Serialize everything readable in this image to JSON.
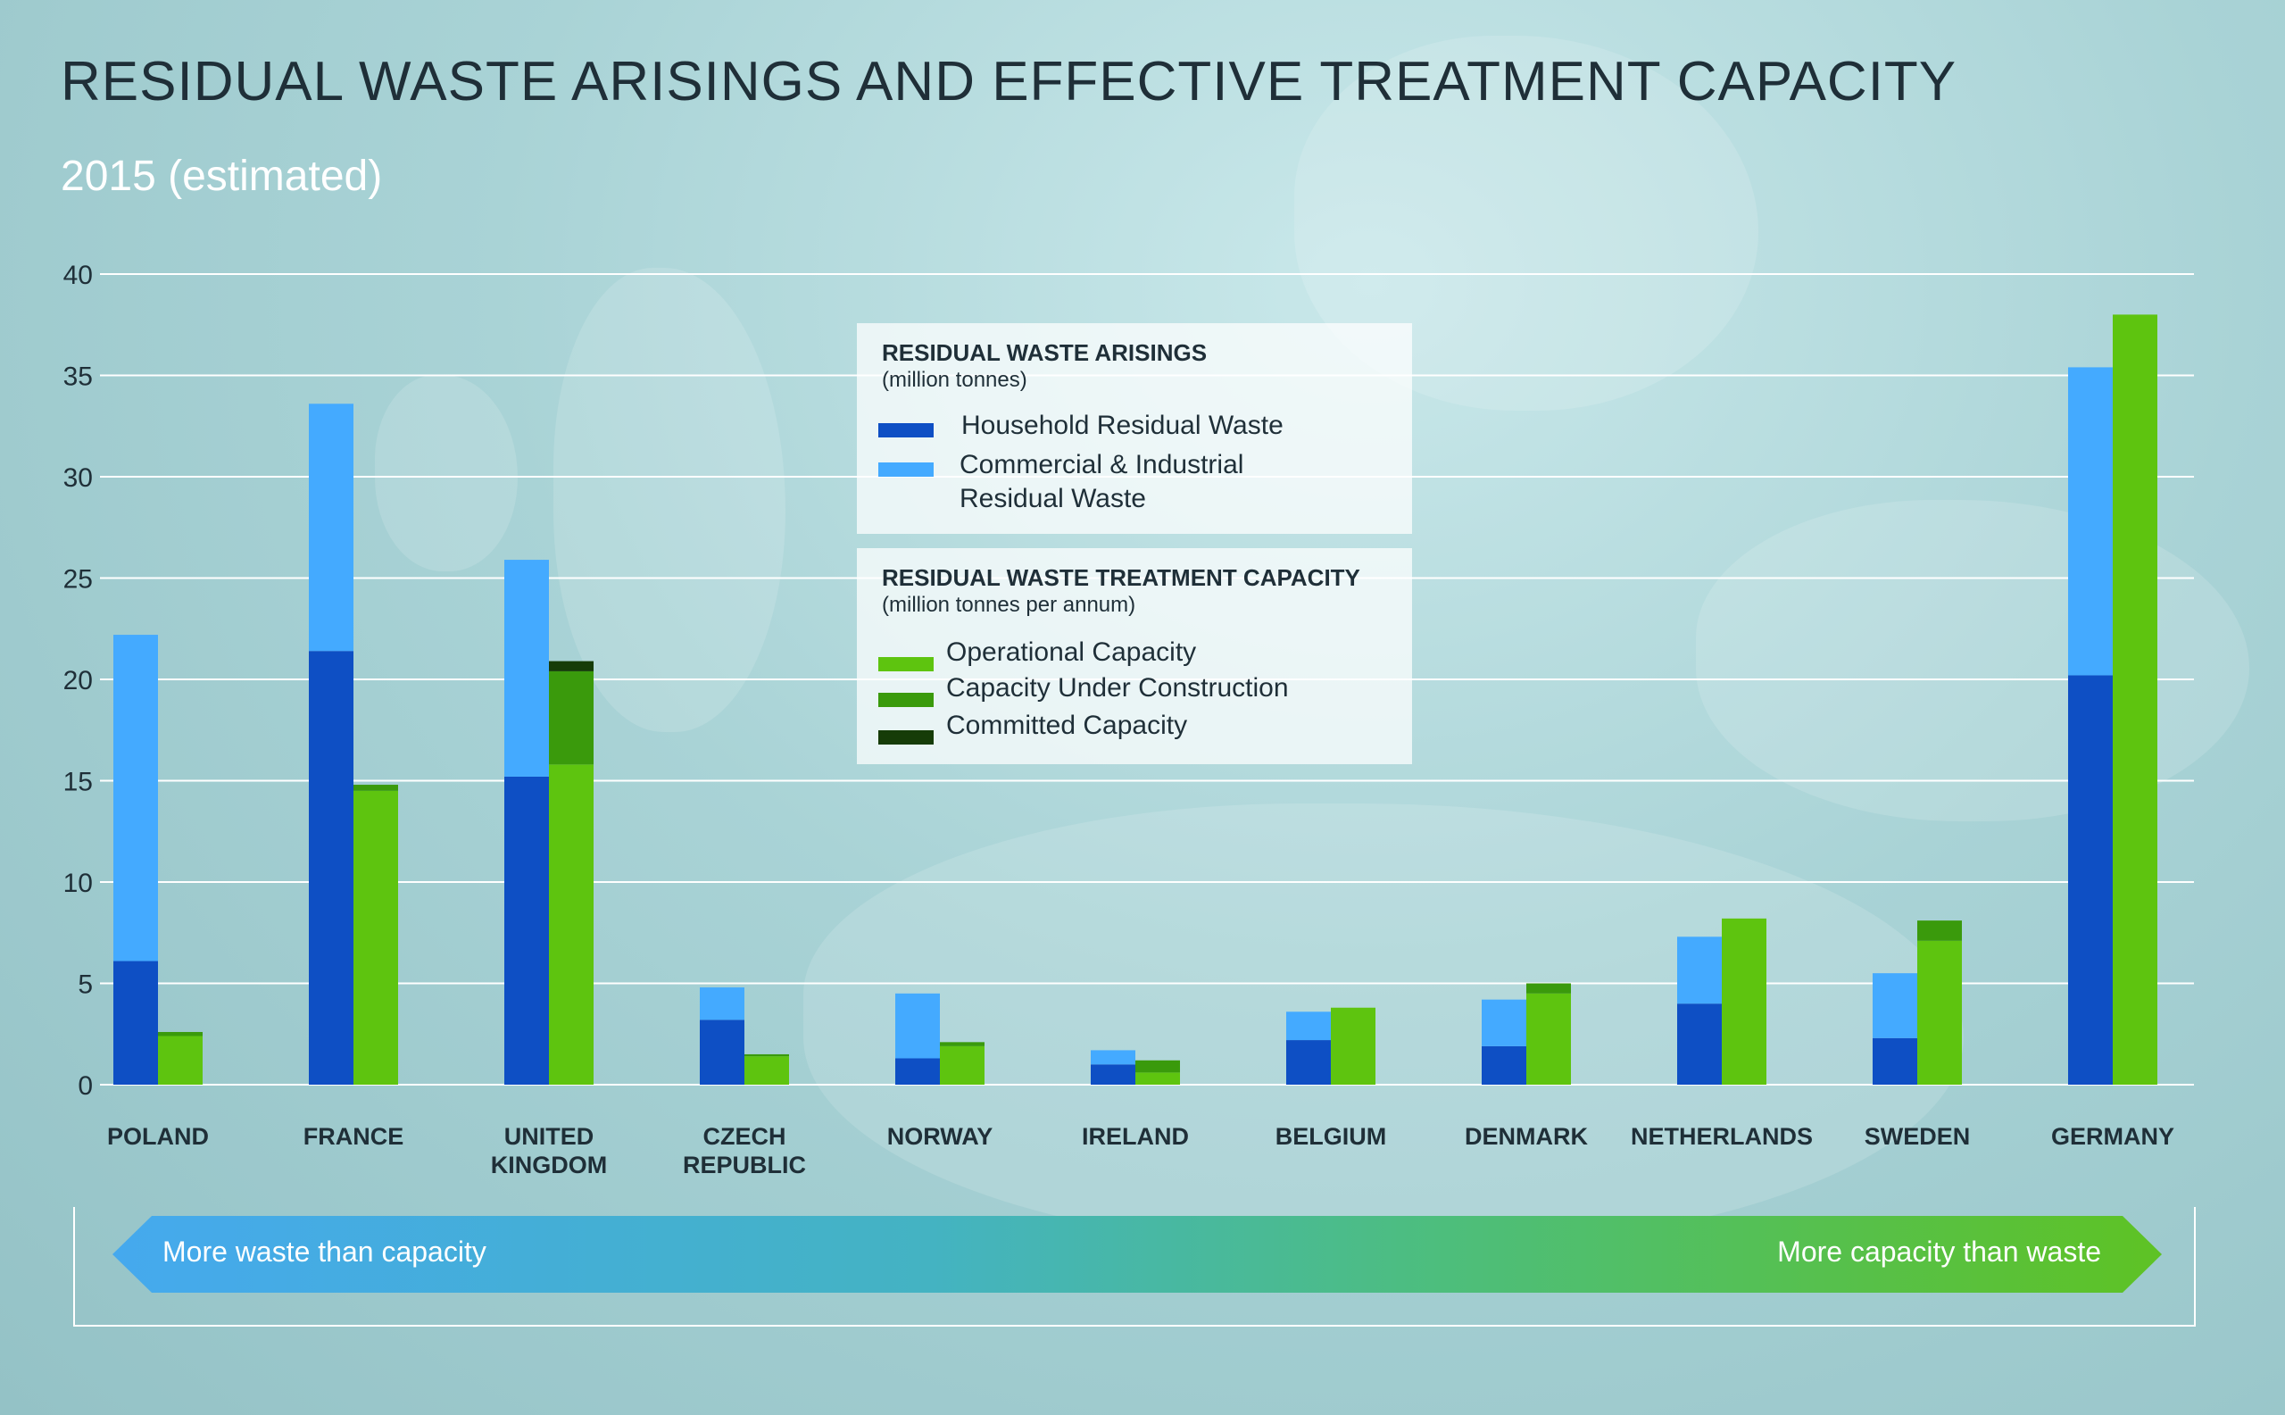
{
  "chart_data": {
    "type": "bar",
    "title": "RESIDUAL WASTE ARISINGS AND EFFECTIVE TREATMENT CAPACITY",
    "subtitle": "2015 (estimated)",
    "ylim": [
      0,
      40
    ],
    "yticks": [
      0,
      5,
      10,
      15,
      20,
      25,
      30,
      35,
      40
    ],
    "grid": true,
    "categories": [
      [
        "POLAND"
      ],
      [
        "FRANCE"
      ],
      [
        "UNITED",
        "KINGDOM"
      ],
      [
        "CZECH",
        "REPUBLIC"
      ],
      [
        "NORWAY"
      ],
      [
        "IRELAND"
      ],
      [
        "BELGIUM"
      ],
      [
        "DENMARK"
      ],
      [
        "NETHERLANDS"
      ],
      [
        "SWEDEN"
      ],
      [
        "GERMANY"
      ]
    ],
    "waste_series": [
      {
        "name": "Household Residual Waste",
        "color": "#0e4fc4",
        "values": [
          6.1,
          21.4,
          15.2,
          3.2,
          1.3,
          1.0,
          2.2,
          1.9,
          4.0,
          2.3,
          20.2
        ]
      },
      {
        "name": "Commercial & Industrial Residual Waste",
        "color": "#44aaff",
        "values": [
          16.1,
          12.2,
          10.7,
          1.6,
          3.2,
          0.7,
          1.4,
          2.3,
          3.3,
          3.2,
          15.2
        ]
      }
    ],
    "capacity_series": [
      {
        "name": "Operational Capacity",
        "color": "#5ec40f",
        "values": [
          2.4,
          14.5,
          15.8,
          1.4,
          1.9,
          0.6,
          3.8,
          4.5,
          8.2,
          7.1,
          38.0
        ]
      },
      {
        "name": "Capacity Under Construction",
        "color": "#3a9a0c",
        "values": [
          0.2,
          0.3,
          4.6,
          0.1,
          0.2,
          0.6,
          0,
          0.5,
          0,
          1.0,
          0
        ]
      },
      {
        "name": "Committed Capacity",
        "color": "#163c08",
        "values": [
          0,
          0,
          0.5,
          0,
          0,
          0,
          0,
          0,
          0,
          0,
          0
        ]
      }
    ]
  },
  "legend": {
    "waste_heading": "RESIDUAL WASTE ARISINGS",
    "waste_unit": "(million tonnes)",
    "household_label": "Household Residual Waste",
    "commercial_label_line1": "Commercial & Industrial",
    "commercial_label_line2": "Residual Waste",
    "capacity_heading": "RESIDUAL WASTE TREATMENT CAPACITY",
    "capacity_unit": "(million tonnes per annum)",
    "operational_label": "Operational Capacity",
    "construction_label": "Capacity Under Construction",
    "committed_label": "Committed Capacity"
  },
  "scale": {
    "left_label": "More waste than capacity",
    "right_label": "More capacity than waste"
  }
}
